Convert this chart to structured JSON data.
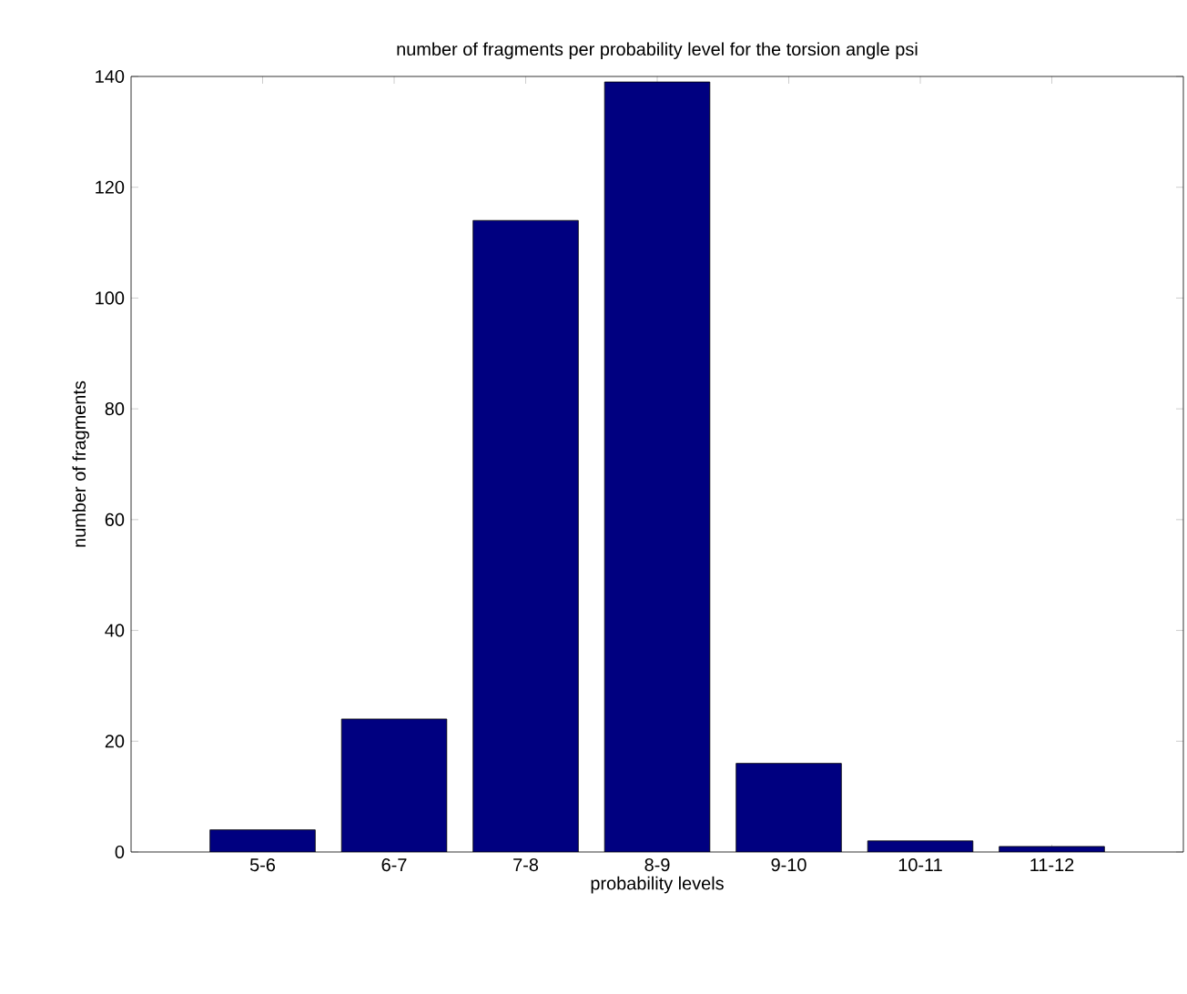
{
  "chart_data": {
    "type": "bar",
    "title": "number of fragments per probability level for the torsion angle psi",
    "xlabel": "probability levels",
    "ylabel": "number of fragments",
    "categories": [
      "5-6",
      "6-7",
      "7-8",
      "8-9",
      "9-10",
      "10-11",
      "11-12"
    ],
    "values": [
      4,
      24,
      114,
      139,
      16,
      2,
      1
    ],
    "color": "#000080",
    "ylim": [
      0,
      140
    ],
    "yticks": [
      0,
      20,
      40,
      60,
      80,
      100,
      120,
      140
    ],
    "grid": false
  }
}
